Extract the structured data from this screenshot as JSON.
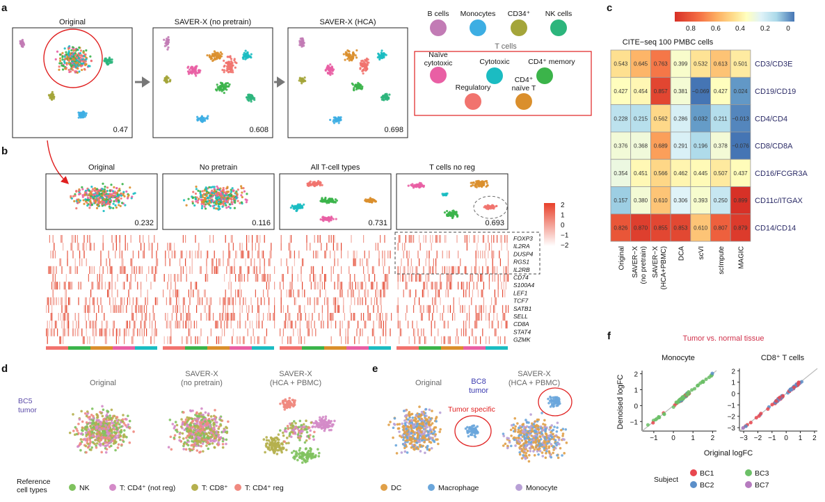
{
  "panel_labels": {
    "a": "a",
    "b": "b",
    "c": "c",
    "d": "d",
    "e": "e",
    "f": "f"
  },
  "panel_a": {
    "plots": [
      {
        "title": "Original",
        "score": "0.47"
      },
      {
        "title": "SAVER-X (no pretrain)",
        "score": "0.608"
      },
      {
        "title": "SAVER-X (HCA)",
        "score": "0.698"
      }
    ],
    "legend": {
      "top": [
        {
          "label": "B cells",
          "color": "#c27bb5"
        },
        {
          "label": "Monocytes",
          "color": "#3daee3"
        },
        {
          "label": "CD34⁺",
          "color": "#a4a53a"
        },
        {
          "label": "NK cells",
          "color": "#2cb57c"
        }
      ],
      "tcells_title": "T cells",
      "tcells": [
        {
          "label": "Naïve",
          "label2": "cytotoxic",
          "color": "#e95fa4"
        },
        {
          "label": "Cytotoxic",
          "color": "#1bbcc2"
        },
        {
          "label": "CD4⁺ memory",
          "color": "#3bb44a"
        },
        {
          "label": "Regulatory",
          "color": "#f1736e"
        },
        {
          "label": "CD4⁺",
          "label2": "naïve T",
          "color": "#da8f2c"
        }
      ]
    }
  },
  "panel_b": {
    "plots": [
      {
        "title": "Original",
        "score": "0.232"
      },
      {
        "title": "No pretrain",
        "score": "0.116"
      },
      {
        "title": "All T-cell types",
        "score": "0.731"
      },
      {
        "title": "T cells no reg",
        "score": "0.693"
      }
    ],
    "genes": [
      "FOXP3",
      "IL2RA",
      "DUSP4",
      "RGS1",
      "IL2RB",
      "CD74",
      "S100A4",
      "LEF1",
      "TCF7",
      "SATB1",
      "SELL",
      "CD8A",
      "STAT4",
      "GZMK"
    ],
    "colorbar_ticks": [
      "2",
      "1",
      "0",
      "−1",
      "−2"
    ]
  },
  "chart_data": [
    {
      "type": "heatmap",
      "title": "CITE−seq 100 PMBC cells",
      "columns": [
        "Original",
        "SAVER−X (no pretrain)",
        "SAVER−X (HCA+PBMC)",
        "DCA",
        "scVI",
        "scImpute",
        "MAGIC"
      ],
      "column_lines": [
        [
          "Original"
        ],
        [
          "SAVER−X",
          "(no pretrain)"
        ],
        [
          "SAVER−X",
          "(HCA+PBMC)"
        ],
        [
          "DCA"
        ],
        [
          "scVI"
        ],
        [
          "scImpute"
        ],
        [
          "MAGIC"
        ]
      ],
      "rows": [
        "CD3/CD3E",
        "CD19/CD19",
        "CD4/CD4",
        "CD8/CD8A",
        "CD16/FCGR3A",
        "CD11c/ITGAX",
        "CD14/CD14"
      ],
      "values": [
        [
          0.543,
          0.645,
          0.763,
          0.399,
          0.532,
          0.613,
          0.501
        ],
        [
          0.427,
          0.454,
          0.857,
          0.381,
          -0.069,
          0.427,
          0.024
        ],
        [
          0.228,
          0.215,
          0.562,
          0.286,
          0.032,
          0.211,
          -0.013
        ],
        [
          0.376,
          0.368,
          0.689,
          0.291,
          0.196,
          0.378,
          -0.076
        ],
        [
          0.354,
          0.451,
          0.566,
          0.462,
          0.445,
          0.507,
          0.437
        ],
        [
          0.157,
          0.38,
          0.61,
          0.306,
          0.393,
          0.25,
          0.899
        ],
        [
          0.826,
          0.87,
          0.855,
          0.853,
          0.61,
          0.807,
          0.879
        ]
      ],
      "labels": [
        [
          "0.543",
          "0.645",
          "0.763",
          "0.399",
          "0.532",
          "0.613",
          "0.501"
        ],
        [
          "0.427",
          "0.454",
          "0.857",
          "0.381",
          "−0.069",
          "0.427",
          "0.024"
        ],
        [
          "0.228",
          "0.215",
          "0.562",
          "0.286",
          "0.032",
          "0.211",
          "−0.013"
        ],
        [
          "0.376",
          "0.368",
          "0.689",
          "0.291",
          "0.196",
          "0.378",
          "−0.076"
        ],
        [
          "0.354",
          "0.451",
          "0.566",
          "0.462",
          "0.445",
          "0.507",
          "0.437"
        ],
        [
          "0.157",
          "0.380",
          "0.610",
          "0.306",
          "0.393",
          "0.250",
          "0.899"
        ],
        [
          "0.826",
          "0.870",
          "0.855",
          "0.853",
          "0.610",
          "0.807",
          "0.879"
        ]
      ],
      "colorbar_ticks": [
        "0.8",
        "0.6",
        "0.4",
        "0.2",
        "0"
      ],
      "color_range": [
        0.9,
        -0.05
      ],
      "colors": [
        "#d73027",
        "#f46d43",
        "#fdae61",
        "#fee090",
        "#ffffbf",
        "#e0f3f8",
        "#abd9e9",
        "#74add1",
        "#4575b4"
      ]
    },
    {
      "type": "scatter",
      "title": "Tumor vs. normal tissue",
      "xlabel": "Original logFC",
      "ylabel": "Denoised logFC",
      "legend_title": "Subject",
      "legend_placement": "bottom",
      "series_legend": [
        {
          "name": "BC1",
          "color": "#e8474f"
        },
        {
          "name": "BC2",
          "color": "#5b8fc9"
        },
        {
          "name": "BC3",
          "color": "#6cc067"
        },
        {
          "name": "BC7",
          "color": "#b67bbf"
        }
      ],
      "subplots": [
        {
          "title": "Monocyte",
          "xlim": [
            -1.6,
            2.2
          ],
          "ylim": [
            -1.6,
            2.2
          ],
          "xticks": [
            "−1",
            "0",
            "1",
            "2"
          ],
          "yticks": [
            "−1",
            "0",
            "1",
            "2"
          ]
        },
        {
          "title": "CD8⁺ T cells",
          "xlim": [
            -3.3,
            2.2
          ],
          "ylim": [
            -3.3,
            2.2
          ],
          "xticks": [
            "−3",
            "−2",
            "−1",
            "0",
            "1",
            "2"
          ],
          "yticks": [
            "−3",
            "−2",
            "−1",
            "0",
            "1",
            "2"
          ]
        }
      ]
    }
  ],
  "panel_d": {
    "side_label": "BC5",
    "side_label2": "tumor",
    "plots": [
      {
        "title": "Original"
      },
      {
        "title": "SAVER-X",
        "title2": "(no pretrain)"
      },
      {
        "title": "SAVER-X",
        "title2": "(HCA + PBMC)"
      }
    ],
    "legend_title": "Reference",
    "legend_title2": "cell types",
    "legend": [
      {
        "label": "NK",
        "color": "#7fc25e"
      },
      {
        "label": "T: CD4⁺ (not reg)",
        "color": "#d48bc8"
      },
      {
        "label": "T: CD8⁺",
        "color": "#b5b04e"
      },
      {
        "label": "T: CD4⁺ reg",
        "color": "#f08a80"
      }
    ]
  },
  "panel_e": {
    "plots": [
      {
        "title": "Original"
      },
      {
        "title": "SAVER-X",
        "title2": "(HCA + PBMC)"
      }
    ],
    "side_label": "BC8",
    "side_label2": "tumor",
    "annotation": "Tumor specific",
    "legend": [
      {
        "label": "DC",
        "color": "#e0a048"
      },
      {
        "label": "Macrophage",
        "color": "#6aa6db"
      },
      {
        "label": "Monocyte",
        "color": "#b8a0d6"
      }
    ]
  },
  "accent_red": "#e02020"
}
